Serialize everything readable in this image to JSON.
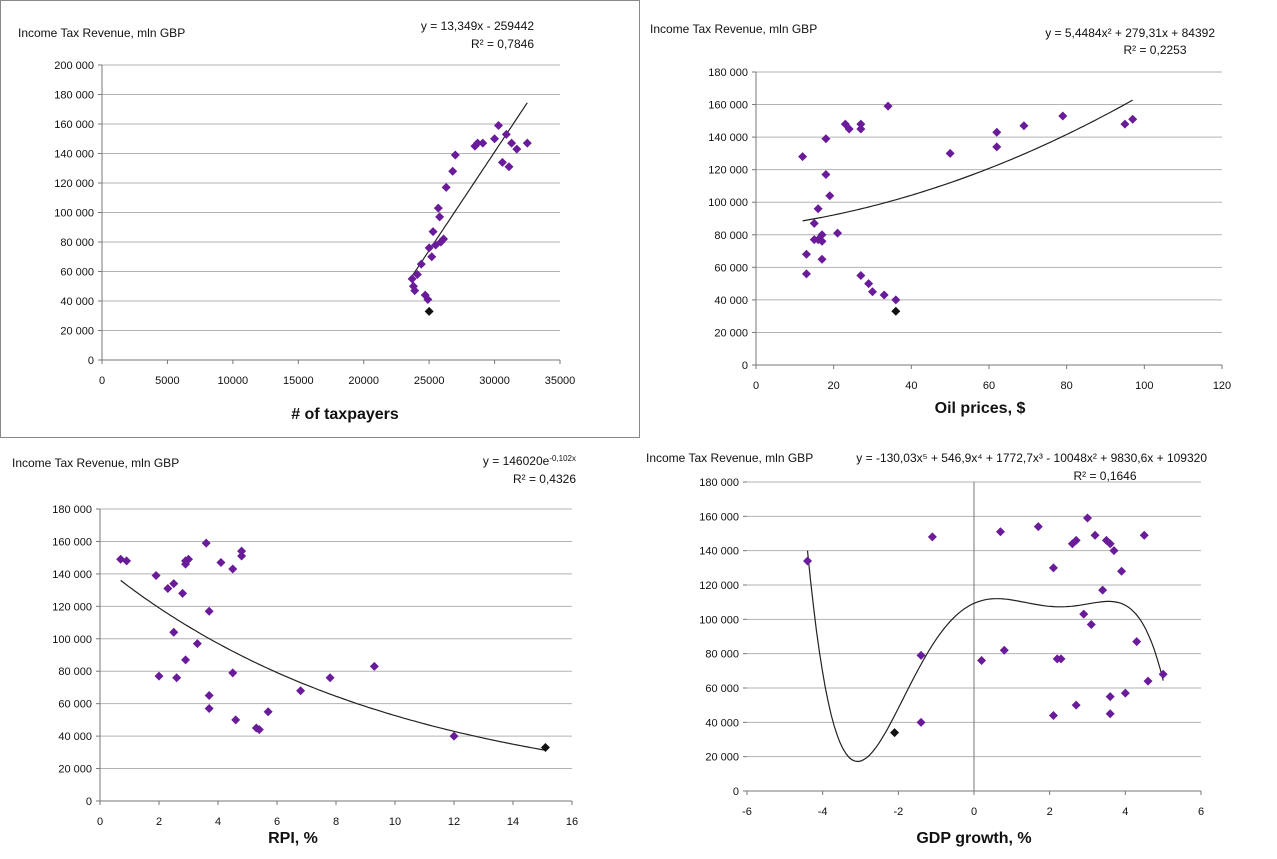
{
  "chart_data": [
    {
      "type": "scatter",
      "ylabel": "Income Tax Revenue, mln GBP",
      "xlabel": "# of taxpayers",
      "equation": "y = 13,349x  - 259442",
      "r2": "R² = 0,7846",
      "xlim": [
        0,
        35000
      ],
      "ylim": [
        0,
        200000
      ],
      "xticks": [
        0,
        5000,
        10000,
        15000,
        20000,
        25000,
        30000,
        35000
      ],
      "xtick_labels": [
        "0",
        "5000",
        "10000",
        "15000",
        "20000",
        "25000",
        "30000",
        "35000"
      ],
      "yticks": [
        0,
        20000,
        40000,
        60000,
        80000,
        100000,
        120000,
        140000,
        160000,
        180000,
        200000
      ],
      "ytick_labels": [
        "0",
        "20 000",
        "40 000",
        "60 000",
        "80 000",
        "100 000",
        "120 000",
        "140 000",
        "160 000",
        "180 000",
        "200 000"
      ],
      "grid": true,
      "trend": {
        "type": "linear",
        "a": 13.349,
        "b": -259442,
        "xrange": [
          23500,
          32500
        ]
      },
      "points": [
        [
          23700,
          55000
        ],
        [
          23800,
          50000
        ],
        [
          23900,
          47000
        ],
        [
          24100,
          58000
        ],
        [
          24400,
          65000
        ],
        [
          24700,
          44000
        ],
        [
          24900,
          41000
        ],
        [
          25000,
          76000
        ],
        [
          25200,
          70000
        ],
        [
          25300,
          87000
        ],
        [
          25500,
          78000
        ],
        [
          25700,
          103000
        ],
        [
          25800,
          97000
        ],
        [
          25900,
          80000
        ],
        [
          26100,
          82000
        ],
        [
          26300,
          117000
        ],
        [
          26800,
          128000
        ],
        [
          27000,
          139000
        ],
        [
          28500,
          145000
        ],
        [
          28700,
          147000
        ],
        [
          29100,
          147000
        ],
        [
          30000,
          150000
        ],
        [
          30300,
          159000
        ],
        [
          30600,
          134000
        ],
        [
          30900,
          153000
        ],
        [
          31100,
          131000
        ],
        [
          31300,
          147000
        ],
        [
          31700,
          143000
        ],
        [
          32500,
          147000
        ]
      ],
      "highlight": [
        [
          25000,
          33000
        ]
      ],
      "point_color": "#6a1b9a",
      "highlight_color": "#111111"
    },
    {
      "type": "scatter",
      "ylabel": "Income Tax Revenue, mln GBP",
      "xlabel": "Oil prices, $",
      "equation": "y = 5,4484x² + 279,31x  + 84392",
      "r2": "R² = 0,2253",
      "xlim": [
        0,
        120
      ],
      "ylim": [
        0,
        180000
      ],
      "xticks": [
        0,
        20,
        40,
        60,
        80,
        100,
        120
      ],
      "xtick_labels": [
        "0",
        "20",
        "40",
        "60",
        "80",
        "100",
        "120"
      ],
      "yticks": [
        0,
        20000,
        40000,
        60000,
        80000,
        100000,
        120000,
        140000,
        160000,
        180000
      ],
      "ytick_labels": [
        "0",
        "20 000",
        "40 000",
        "60 000",
        "80 000",
        "100 000",
        "120 000",
        "140 000",
        "160 000",
        "180 000"
      ],
      "grid": true,
      "trend": {
        "type": "poly2",
        "a": 5.4484,
        "b": 279.31,
        "c": 84392,
        "xrange": [
          12,
          97
        ]
      },
      "points": [
        [
          12,
          128000
        ],
        [
          13,
          56000
        ],
        [
          13,
          68000
        ],
        [
          15,
          87000
        ],
        [
          15,
          77000
        ],
        [
          16,
          96000
        ],
        [
          16,
          77000
        ],
        [
          17,
          80000
        ],
        [
          17,
          65000
        ],
        [
          17,
          76000
        ],
        [
          18,
          117000
        ],
        [
          18,
          139000
        ],
        [
          19,
          104000
        ],
        [
          21,
          81000
        ],
        [
          23,
          148000
        ],
        [
          24,
          145000
        ],
        [
          27,
          145000
        ],
        [
          27,
          148000
        ],
        [
          27,
          55000
        ],
        [
          29,
          50000
        ],
        [
          30,
          45000
        ],
        [
          33,
          43000
        ],
        [
          34,
          159000
        ],
        [
          36,
          40000
        ],
        [
          50,
          130000
        ],
        [
          62,
          134000
        ],
        [
          62,
          143000
        ],
        [
          69,
          147000
        ],
        [
          79,
          153000
        ],
        [
          95,
          148000
        ],
        [
          97,
          151000
        ]
      ],
      "highlight": [
        [
          36,
          33000
        ]
      ],
      "point_color": "#6a1b9a",
      "highlight_color": "#111111"
    },
    {
      "type": "scatter",
      "ylabel": "Income Tax Revenue, mln GBP",
      "xlabel": "RPI, %",
      "equation": "y = 146020e",
      "equation_sup": "-0,102x",
      "r2": "R² = 0,4326",
      "xlim": [
        0,
        16
      ],
      "ylim": [
        0,
        180000
      ],
      "xticks": [
        0,
        2,
        4,
        6,
        8,
        10,
        12,
        14,
        16
      ],
      "xtick_labels": [
        "0",
        "2",
        "4",
        "6",
        "8",
        "10",
        "12",
        "14",
        "16"
      ],
      "yticks": [
        0,
        20000,
        40000,
        60000,
        80000,
        100000,
        120000,
        140000,
        160000,
        180000
      ],
      "ytick_labels": [
        "0",
        "20 000",
        "40 000",
        "60 000",
        "80 000",
        "100 000",
        "120 000",
        "140 000",
        "160 000",
        "180 000"
      ],
      "grid": true,
      "trend": {
        "type": "exp",
        "a": 146020,
        "b": -0.102,
        "xrange": [
          0.7,
          15.1
        ]
      },
      "points": [
        [
          0.7,
          149000
        ],
        [
          0.9,
          148000
        ],
        [
          1.9,
          139000
        ],
        [
          2.0,
          77000
        ],
        [
          2.3,
          131000
        ],
        [
          2.5,
          134000
        ],
        [
          2.5,
          104000
        ],
        [
          2.6,
          76000
        ],
        [
          2.8,
          128000
        ],
        [
          2.9,
          146000
        ],
        [
          2.9,
          87000
        ],
        [
          2.9,
          148000
        ],
        [
          3.0,
          149000
        ],
        [
          3.3,
          97000
        ],
        [
          3.6,
          159000
        ],
        [
          3.7,
          117000
        ],
        [
          3.7,
          65000
        ],
        [
          3.7,
          57000
        ],
        [
          4.1,
          147000
        ],
        [
          4.5,
          143000
        ],
        [
          4.5,
          79000
        ],
        [
          4.6,
          50000
        ],
        [
          4.8,
          151000
        ],
        [
          4.8,
          154000
        ],
        [
          5.3,
          45000
        ],
        [
          5.4,
          44000
        ],
        [
          5.7,
          55000
        ],
        [
          6.8,
          68000
        ],
        [
          7.8,
          76000
        ],
        [
          9.3,
          83000
        ],
        [
          12.0,
          40000
        ]
      ],
      "highlight": [
        [
          15.1,
          33000
        ]
      ],
      "point_color": "#6a1b9a",
      "highlight_color": "#111111"
    },
    {
      "type": "scatter",
      "ylabel": "Income Tax Revenue, mln GBP",
      "xlabel": "GDP growth, %",
      "equation": "y = -130,03x⁵ + 546,9x⁴ + 1772,7x³ - 10048x² + 9830,6x + 109320",
      "r2": "R² = 0,1646",
      "xlim": [
        -6,
        6
      ],
      "ylim": [
        0,
        180000
      ],
      "xticks": [
        -6,
        -4,
        -2,
        0,
        2,
        4,
        6
      ],
      "xtick_labels": [
        "-6",
        "-4",
        "-2",
        "0",
        "2",
        "4",
        "6"
      ],
      "yticks": [
        0,
        20000,
        40000,
        60000,
        80000,
        100000,
        120000,
        140000,
        160000,
        180000
      ],
      "ytick_labels": [
        "0",
        "20 000",
        "40 000",
        "60 000",
        "80 000",
        "100 000",
        "120 000",
        "140 000",
        "160 000",
        "180 000"
      ],
      "grid": true,
      "trend": {
        "type": "poly5",
        "coef": [
          -130.03,
          546.9,
          1772.7,
          -10048,
          9830.6,
          109320
        ],
        "xrange": [
          -4.4,
          5.0
        ]
      },
      "points": [
        [
          -4.4,
          134000
        ],
        [
          -1.4,
          79000
        ],
        [
          -1.4,
          40000
        ],
        [
          -1.1,
          148000
        ],
        [
          0.2,
          76000
        ],
        [
          0.7,
          151000
        ],
        [
          0.8,
          82000
        ],
        [
          1.7,
          154000
        ],
        [
          2.1,
          130000
        ],
        [
          2.1,
          44000
        ],
        [
          2.2,
          77000
        ],
        [
          2.3,
          77000
        ],
        [
          2.6,
          144000
        ],
        [
          2.7,
          146000
        ],
        [
          2.7,
          50000
        ],
        [
          2.9,
          103000
        ],
        [
          3.0,
          159000
        ],
        [
          3.1,
          97000
        ],
        [
          3.2,
          149000
        ],
        [
          3.4,
          117000
        ],
        [
          3.5,
          146000
        ],
        [
          3.6,
          144000
        ],
        [
          3.6,
          55000
        ],
        [
          3.6,
          45000
        ],
        [
          3.7,
          140000
        ],
        [
          3.9,
          128000
        ],
        [
          4.0,
          57000
        ],
        [
          4.3,
          87000
        ],
        [
          4.5,
          149000
        ],
        [
          4.6,
          64000
        ],
        [
          5.0,
          68000
        ]
      ],
      "highlight": [
        [
          -2.1,
          34000
        ]
      ],
      "point_color": "#6a1b9a",
      "highlight_color": "#111111"
    }
  ]
}
